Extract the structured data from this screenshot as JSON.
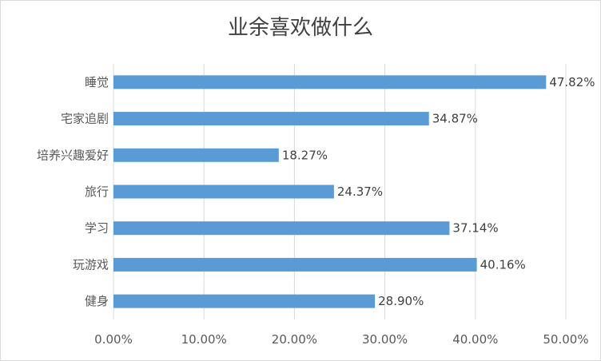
{
  "chart_data": {
    "type": "bar",
    "orientation": "horizontal",
    "title": "业余喜欢做什么",
    "categories": [
      "睡觉",
      "宅家追剧",
      "培养兴趣爱好",
      "旅行",
      "学习",
      "玩游戏",
      "健身"
    ],
    "values": [
      47.82,
      34.87,
      18.27,
      24.37,
      37.14,
      40.16,
      28.9
    ],
    "data_labels": [
      "47.82%",
      "34.87%",
      "18.27%",
      "24.37%",
      "37.14%",
      "40.16%",
      "28.90%"
    ],
    "xticks": [
      "0.00%",
      "10.00%",
      "20.00%",
      "30.00%",
      "40.00%",
      "50.00%"
    ],
    "xlim": [
      0,
      50
    ],
    "xlabel": "",
    "ylabel": "",
    "grid": true,
    "legend": "none",
    "bar_color": "#5b9bd5",
    "grid_color": "#d9d9d9"
  }
}
